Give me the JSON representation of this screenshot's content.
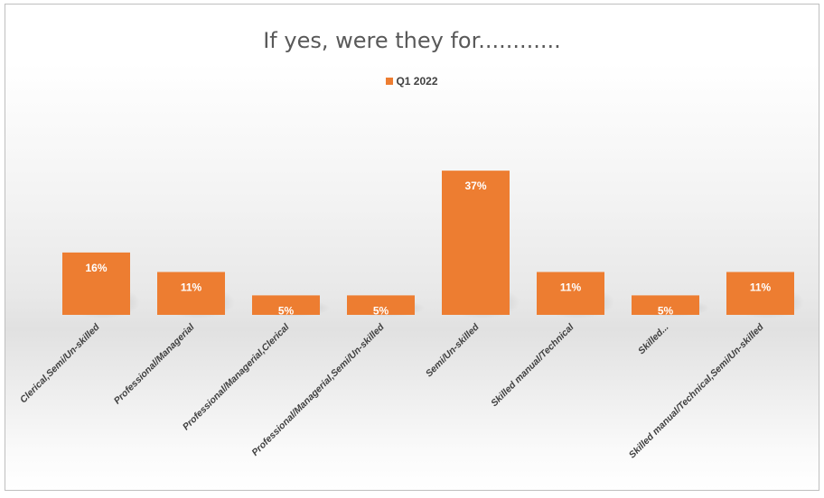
{
  "chart_data": {
    "type": "bar",
    "title": "If yes, were they for............",
    "categories": [
      "Clerical,Semi/Un-skilled",
      "Professional/Managerial",
      "Professional/Managerial,Clerical",
      "Professional/Managerial,Semi/Un-skilled",
      "Semi/Un-skilled",
      "Skilled manual/Technical",
      "Skilled...",
      "Skilled manual/Technical,Semi/Un-skilled"
    ],
    "series": [
      {
        "name": "Q1 2022",
        "values": [
          16,
          11,
          5,
          5,
          37,
          11,
          5,
          11
        ],
        "labels": [
          "16%",
          "11%",
          "5%",
          "5%",
          "37%",
          "11%",
          "5%",
          "11%"
        ]
      }
    ],
    "ylim": [
      0,
      40
    ],
    "grid": false,
    "legend": "top-center",
    "bar_color": "#ED7D31"
  }
}
